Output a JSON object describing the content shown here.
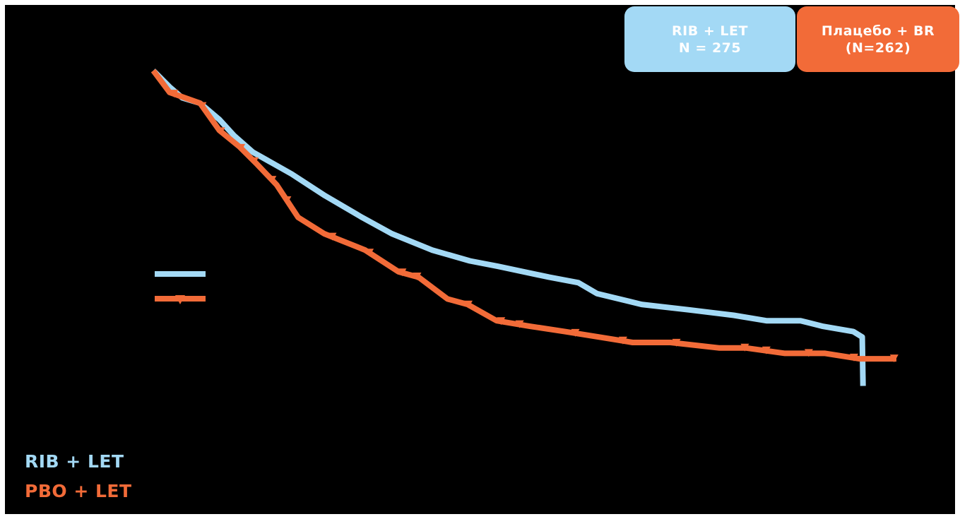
{
  "colors": {
    "background": "#000000",
    "rib_let": "#a3d9f5",
    "pbo_let": "#f26b38",
    "badge_text": "#ffffff"
  },
  "badges": {
    "rib_let": {
      "line1": "RIB + LET",
      "line2": "N = 275"
    },
    "pbo_br": {
      "line1": "Плацебо + BR",
      "line2": "(N=262)"
    }
  },
  "bottom_labels": {
    "rib_let": "RIB + LET",
    "pbo_let": "PBO + LET"
  },
  "chart_data": {
    "type": "line",
    "title": "",
    "xlabel": "",
    "ylabel": "",
    "xlim": [
      0,
      100
    ],
    "ylim": [
      0,
      100
    ],
    "grid": false,
    "legend_placement": "left",
    "x_tick_labels": [],
    "y_tick_labels": [],
    "series": [
      {
        "name": "RIB + LET",
        "color": "#a3d9f5",
        "style": "step",
        "x": [
          0,
          2.2,
          3.9,
          6.3,
          8.9,
          10.9,
          13.4,
          18.6,
          23.1,
          28.1,
          32.1,
          37.5,
          42.6,
          46.4,
          53.3,
          57.2,
          59.7,
          65.7,
          72.1,
          78.1,
          82.5,
          87.1,
          90.0,
          94.2,
          95.4,
          95.5
        ],
        "y": [
          100,
          97,
          95,
          94,
          91,
          88,
          85,
          81,
          77,
          73,
          70,
          67,
          65,
          64,
          62,
          61,
          59,
          57,
          56,
          55,
          54,
          54,
          53,
          52,
          51,
          42
        ],
        "censor_x": []
      },
      {
        "name": "PBO + LET",
        "color": "#f26b38",
        "style": "step",
        "x": [
          0,
          2.2,
          6.3,
          8.9,
          11.6,
          13.8,
          16.6,
          19.5,
          23.0,
          28.5,
          33.0,
          35.7,
          39.6,
          42.3,
          46.2,
          50.6,
          55.4,
          60.0,
          64.5,
          69.6,
          76.1,
          79.7,
          85.0,
          90.4,
          95.0,
          100
        ],
        "y": [
          100,
          96,
          94,
          89,
          86,
          83,
          79,
          73,
          70,
          67,
          63,
          62,
          58,
          57,
          54,
          53,
          52,
          51,
          50,
          50,
          49,
          49,
          48,
          48,
          47,
          47
        ],
        "censor_x": [
          2.8,
          6.6,
          9.1,
          11.8,
          13.6,
          16.0,
          18.0,
          24.1,
          29.1,
          33.5,
          35.5,
          42.4,
          46.8,
          49.3,
          56.8,
          63.2,
          70.4,
          79.6,
          82.5,
          88.2,
          94.3,
          99.7
        ]
      }
    ],
    "legend": {
      "entries": [
        {
          "series": "RIB + LET",
          "text": ""
        },
        {
          "series": "PBO + LET",
          "text": ""
        }
      ]
    }
  }
}
